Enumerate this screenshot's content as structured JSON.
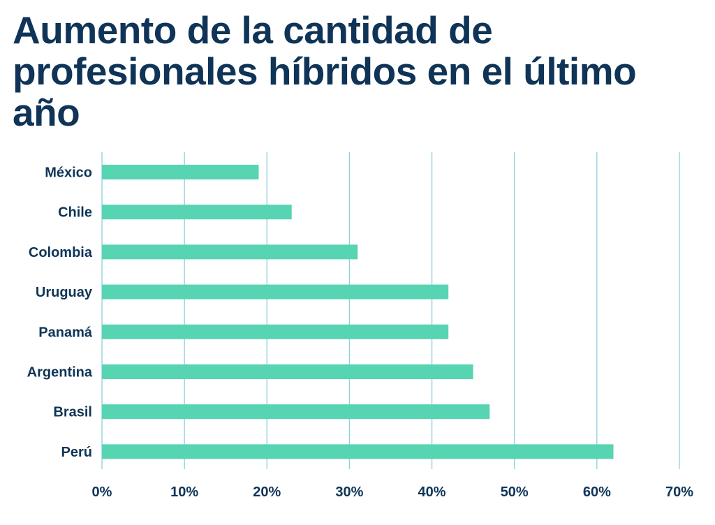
{
  "colors": {
    "title": "#0f3457",
    "bar": "#57d4b2",
    "grid": "#8ecfe0",
    "text": "#0f3457"
  },
  "chart_data": {
    "type": "bar",
    "orientation": "horizontal",
    "title": "Aumento de la cantidad de profesionales híbridos en el último año",
    "xlabel": "",
    "ylabel": "",
    "xlim": [
      0,
      70
    ],
    "grid": true,
    "categories": [
      "México",
      "Chile",
      "Colombia",
      "Uruguay",
      "Panamá",
      "Argentina",
      "Brasil",
      "Perú"
    ],
    "values": [
      19,
      23,
      31,
      42,
      42,
      45,
      47,
      62
    ],
    "ticks": [
      0,
      10,
      20,
      30,
      40,
      50,
      60,
      70
    ],
    "tick_labels": [
      "0%",
      "10%",
      "20%",
      "30%",
      "40%",
      "50%",
      "60%",
      "70%"
    ]
  }
}
